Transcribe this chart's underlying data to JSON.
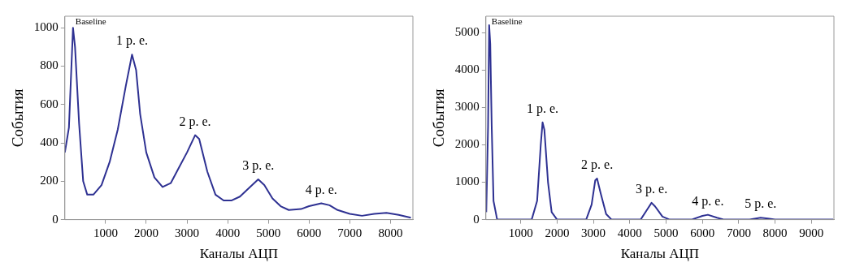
{
  "chart_data": [
    {
      "type": "line",
      "xlabel": "Каналы АЦП",
      "ylabel": "События",
      "xlim": [
        0,
        8550
      ],
      "ylim": [
        0,
        1060
      ],
      "xticks": [
        1000,
        2000,
        3000,
        4000,
        5000,
        6000,
        7000,
        8000
      ],
      "yticks": [
        0,
        200,
        400,
        600,
        800,
        1000
      ],
      "grid": false,
      "legend": false,
      "marker": "none",
      "line_style": "solid",
      "series": [
        {
          "color": "#2e3192",
          "x": [
            0,
            100,
            200,
            250,
            350,
            450,
            550,
            700,
            900,
            1100,
            1300,
            1500,
            1650,
            1750,
            1850,
            2000,
            2200,
            2400,
            2600,
            2800,
            3000,
            3200,
            3300,
            3500,
            3700,
            3900,
            4100,
            4300,
            4500,
            4750,
            4900,
            5100,
            5300,
            5500,
            5800,
            6000,
            6300,
            6500,
            6700,
            7000,
            7300,
            7600,
            7900,
            8200,
            8500
          ],
          "values": [
            350,
            480,
            1000,
            900,
            500,
            200,
            130,
            130,
            180,
            300,
            470,
            700,
            860,
            780,
            550,
            350,
            220,
            170,
            190,
            270,
            350,
            440,
            420,
            250,
            130,
            100,
            100,
            120,
            160,
            210,
            180,
            110,
            70,
            50,
            55,
            70,
            85,
            75,
            50,
            30,
            20,
            30,
            35,
            25,
            10
          ]
        }
      ],
      "annotations": [
        {
          "text": "Baseline",
          "x": 200,
          "y": 1000
        },
        {
          "text": "1 p. e.",
          "x": 1650,
          "y": 860
        },
        {
          "text": "2 p. e.",
          "x": 3200,
          "y": 440
        },
        {
          "text": "3 p. e.",
          "x": 4750,
          "y": 210
        },
        {
          "text": "4 p. e.",
          "x": 6300,
          "y": 85
        }
      ]
    },
    {
      "type": "line",
      "xlabel": "Каналы АЦП",
      "ylabel": "События",
      "xlim": [
        40,
        9620
      ],
      "ylim": [
        0,
        5440
      ],
      "xticks": [
        1000,
        2000,
        3000,
        4000,
        5000,
        6000,
        7000,
        8000,
        9000
      ],
      "yticks": [
        0,
        1000,
        2000,
        3000,
        4000,
        5000
      ],
      "grid": false,
      "legend": false,
      "marker": "none",
      "line_style": "solid",
      "series": [
        {
          "color": "#2e3192",
          "x": [
            50,
            100,
            130,
            160,
            200,
            250,
            350,
            1300,
            1450,
            1550,
            1600,
            1650,
            1750,
            1850,
            2000,
            2800,
            2950,
            3050,
            3100,
            3200,
            3350,
            3500,
            4300,
            4500,
            4600,
            4700,
            4900,
            5100,
            5700,
            6000,
            6150,
            6400,
            6600,
            7300,
            7600,
            7800,
            8000,
            9600
          ],
          "values": [
            200,
            2500,
            5200,
            4700,
            2500,
            500,
            0,
            0,
            500,
            2000,
            2600,
            2400,
            1000,
            200,
            0,
            0,
            400,
            1050,
            1100,
            700,
            150,
            0,
            0,
            300,
            450,
            350,
            80,
            0,
            0,
            100,
            130,
            50,
            0,
            0,
            50,
            30,
            0,
            0
          ]
        }
      ],
      "annotations": [
        {
          "text": "Baseline",
          "x": 130,
          "y": 5200
        },
        {
          "text": "1 p. e.",
          "x": 1600,
          "y": 2600
        },
        {
          "text": "2 p. e.",
          "x": 3100,
          "y": 1100
        },
        {
          "text": "3 p. e.",
          "x": 4600,
          "y": 450
        },
        {
          "text": "4 p. e.",
          "x": 6150,
          "y": 130
        },
        {
          "text": "5 p. e.",
          "x": 7600,
          "y": 50
        }
      ]
    }
  ]
}
